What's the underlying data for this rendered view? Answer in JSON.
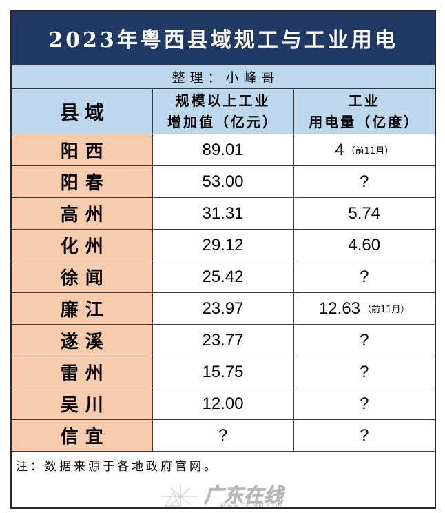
{
  "title": "2023年粤西县域规工与工业用电",
  "compiler": "整理：小峰哥",
  "header": {
    "county": "县域",
    "value_added_line1": "规模以上工业",
    "value_added_line2": "增加值（亿元）",
    "electricity_line1": "工业",
    "electricity_line2": "用电量（亿度）"
  },
  "rows": [
    {
      "county": "阳西",
      "value_added": "89.01",
      "electricity": "4",
      "electricity_note": "（前11月）"
    },
    {
      "county": "阳春",
      "value_added": "53.00",
      "electricity": "?"
    },
    {
      "county": "高州",
      "value_added": "31.31",
      "electricity": "5.74"
    },
    {
      "county": "化州",
      "value_added": "29.12",
      "electricity": "4.60"
    },
    {
      "county": "徐闻",
      "value_added": "25.42",
      "electricity": "?"
    },
    {
      "county": "廉江",
      "value_added": "23.97",
      "electricity": "12.63",
      "electricity_note": "（前11月）"
    },
    {
      "county": "遂溪",
      "value_added": "23.77",
      "electricity": "?"
    },
    {
      "county": "雷州",
      "value_added": "15.75",
      "electricity": "?"
    },
    {
      "county": "吴川",
      "value_added": "12.00",
      "electricity": "?"
    },
    {
      "county": "信宜",
      "value_added": "?",
      "electricity": "?"
    }
  ],
  "note": "注：数据来源于各地政府官网。",
  "watermark": {
    "logo_text": "广东在线",
    "url": "WWW.GDMM.COM"
  },
  "colors": {
    "title_bg": "#1f3864",
    "header_bg": "#bdd7ee",
    "county_bg": "#f8cbad",
    "cell_bg": "#ffffff"
  }
}
